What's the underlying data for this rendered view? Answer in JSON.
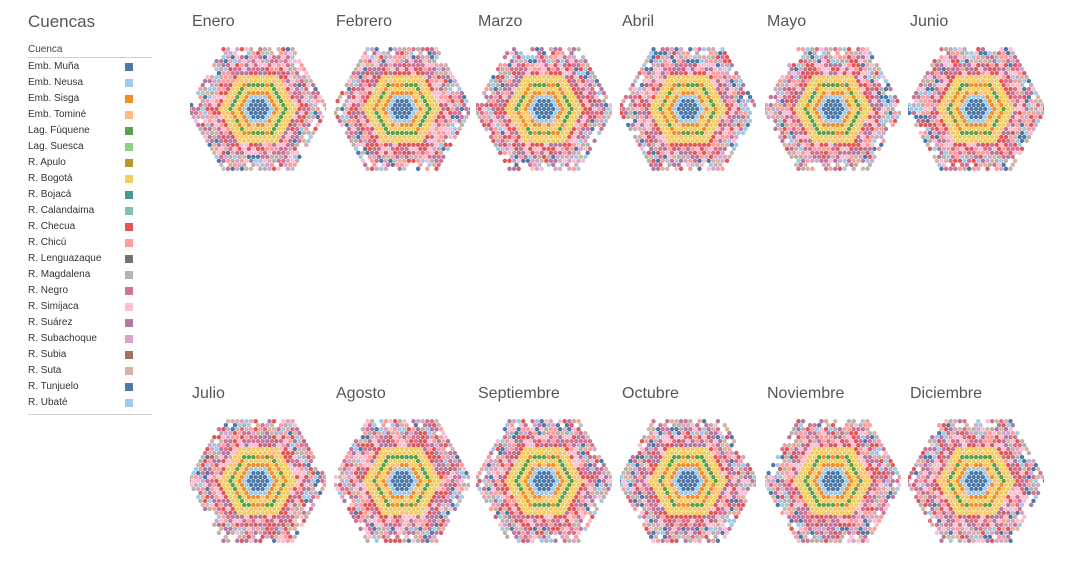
{
  "legend": {
    "title": "Cuencas",
    "header": "Cuenca",
    "items": [
      {
        "label": "Emb. Muña",
        "color": "#4e79a7"
      },
      {
        "label": "Emb. Neusa",
        "color": "#a0cbe8"
      },
      {
        "label": "Emb. Sisga",
        "color": "#f28e2b"
      },
      {
        "label": "Emb. Tominé",
        "color": "#ffbe7d"
      },
      {
        "label": "Lag. Fúquene",
        "color": "#59a14f"
      },
      {
        "label": "Lag. Suesca",
        "color": "#8cd17d"
      },
      {
        "label": "R. Apulo",
        "color": "#b6992d"
      },
      {
        "label": "R. Bogotá",
        "color": "#f1ce63"
      },
      {
        "label": "R. Bojacá",
        "color": "#499894"
      },
      {
        "label": "R. Calandaima",
        "color": "#86bcb6"
      },
      {
        "label": "R. Checua",
        "color": "#e15759"
      },
      {
        "label": "R. Chicú",
        "color": "#ff9d9a"
      },
      {
        "label": "R. Lenguazaque",
        "color": "#79706e"
      },
      {
        "label": "R. Magdalena",
        "color": "#bab0ac"
      },
      {
        "label": "R. Negro",
        "color": "#d37295"
      },
      {
        "label": "R. Simijaca",
        "color": "#fabfd2"
      },
      {
        "label": "R. Suárez",
        "color": "#b07aa1"
      },
      {
        "label": "R. Subachoque",
        "color": "#d4a6c8"
      },
      {
        "label": "R. Subia",
        "color": "#9d7660"
      },
      {
        "label": "R. Suta",
        "color": "#d7b5a6"
      },
      {
        "label": "R. Tunjuelo",
        "color": "#4e79a7"
      },
      {
        "label": "R. Ubaté",
        "color": "#a0cbe8"
      }
    ]
  },
  "months": [
    "Enero",
    "Febrero",
    "Marzo",
    "Abril",
    "Mayo",
    "Junio",
    "Julio",
    "Agosto",
    "Septiembre",
    "Octubre",
    "Noviembre",
    "Diciembre"
  ],
  "chart_data": {
    "type": "hexagonal dot rings (small multiples)",
    "series_key": "Cuenca",
    "facets": [
      "Enero",
      "Febrero",
      "Marzo",
      "Abril",
      "Mayo",
      "Junio",
      "Julio",
      "Agosto",
      "Septiembre",
      "Octubre",
      "Noviembre",
      "Diciembre"
    ],
    "ring_colors_inner_to_outer": [
      "#4e79a7",
      "#a0cbe8",
      "#f28e2b",
      "#f1ce63",
      "#59a14f",
      "#f1ce63",
      "#e15759",
      "#d37295",
      "#fabfd2"
    ]
  }
}
